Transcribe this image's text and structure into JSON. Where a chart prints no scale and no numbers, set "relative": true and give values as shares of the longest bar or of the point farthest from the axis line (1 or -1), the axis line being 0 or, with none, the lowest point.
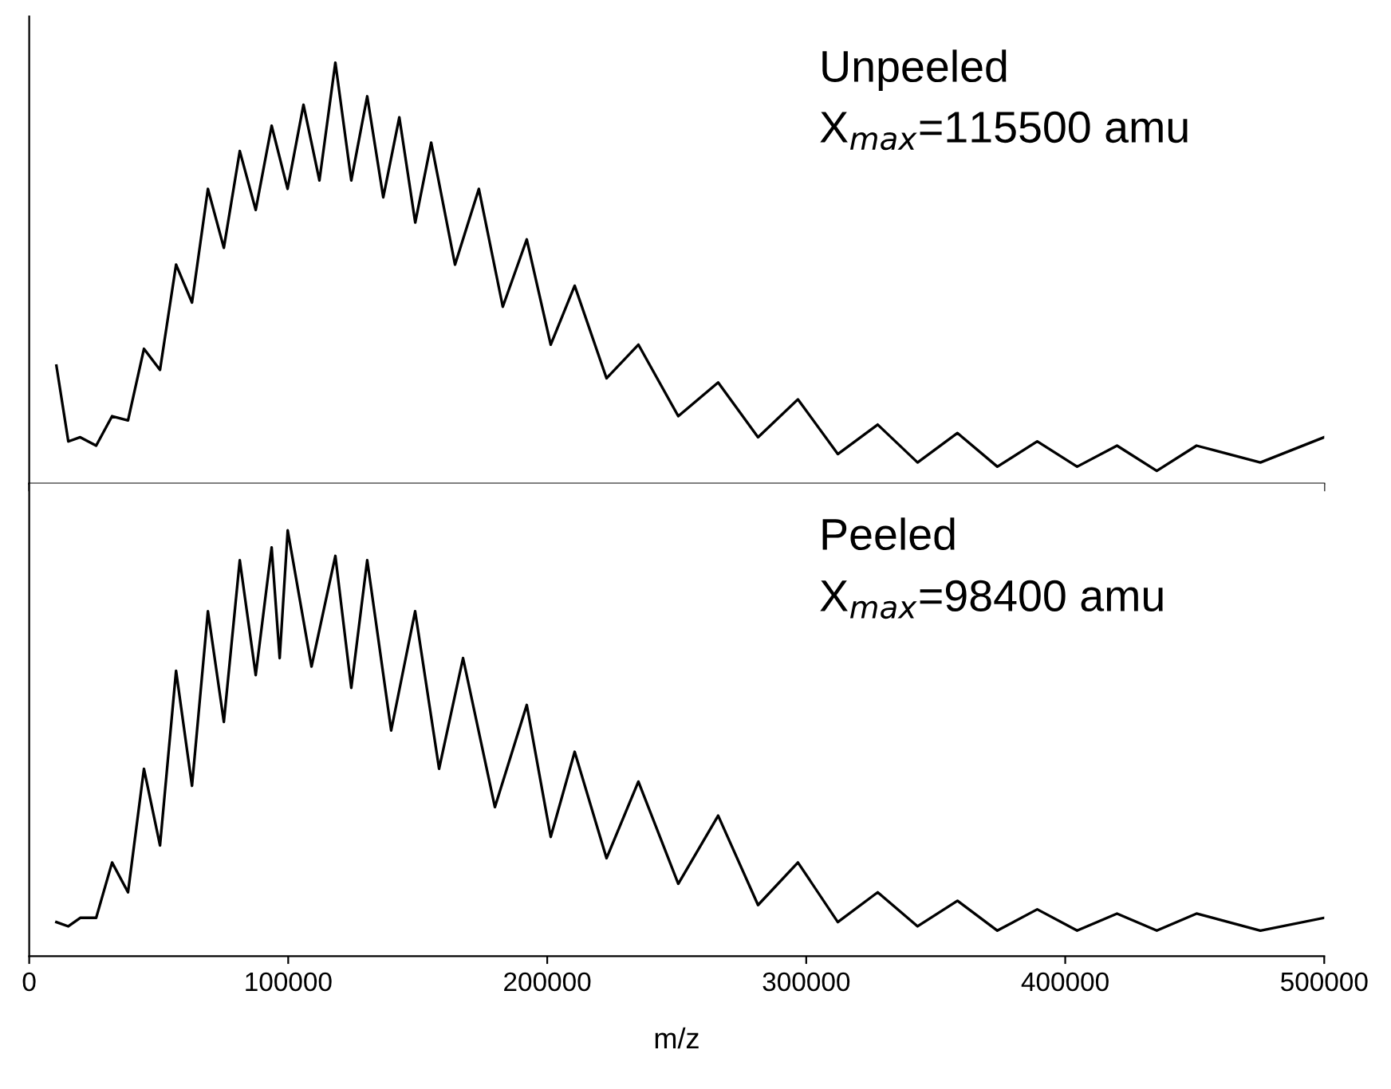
{
  "chart_data": [
    {
      "type": "line",
      "relative": true,
      "xlim": [
        0,
        500000
      ],
      "xticks": [
        0,
        100000,
        200000,
        300000,
        400000,
        500000
      ],
      "tick_labels": false,
      "grid": false,
      "legend": false,
      "annotations": [
        "Unpeeled",
        "X$_{max}$=115500 amu"
      ],
      "series": [
        {
          "color": "#000000",
          "x": [
            10500,
            15100,
            19700,
            25850,
            32000,
            38150,
            44300,
            50500,
            56700,
            62850,
            69000,
            75150,
            81300,
            87450,
            93600,
            99750,
            105900,
            112050,
            118200,
            124350,
            130500,
            136700,
            142900,
            149050,
            155200,
            164400,
            173600,
            182850,
            192100,
            201350,
            210600,
            222900,
            235200,
            250600,
            266000,
            281400,
            296800,
            312200,
            327600,
            343000,
            358400,
            373800,
            389200,
            404600,
            420000,
            435350,
            450700,
            475350,
            500000
          ],
          "values": [
            0.28,
            0.1,
            0.11,
            0.09,
            0.16,
            0.15,
            0.32,
            0.27,
            0.52,
            0.43,
            0.7,
            0.56,
            0.79,
            0.65,
            0.85,
            0.7,
            0.9,
            0.72,
            1.0,
            0.72,
            0.92,
            0.68,
            0.87,
            0.62,
            0.81,
            0.52,
            0.7,
            0.42,
            0.58,
            0.33,
            0.47,
            0.25,
            0.33,
            0.16,
            0.24,
            0.11,
            0.2,
            0.07,
            0.14,
            0.05,
            0.12,
            0.04,
            0.1,
            0.04,
            0.09,
            0.03,
            0.09,
            0.05,
            0.11
          ]
        }
      ]
    },
    {
      "type": "line",
      "relative": true,
      "xlim": [
        0,
        500000
      ],
      "xticks": [
        0,
        100000,
        200000,
        300000,
        400000,
        500000
      ],
      "tick_labels": "x",
      "xlabel": "m/z",
      "grid": false,
      "legend": false,
      "annotations": [
        "Peeled",
        "X$_{max}$=98400 amu"
      ],
      "series": [
        {
          "color": "#000000",
          "x": [
            10500,
            15100,
            19700,
            25850,
            32000,
            38150,
            44300,
            50500,
            56700,
            62850,
            69000,
            75150,
            81300,
            87450,
            93600,
            96700,
            99800,
            109000,
            118200,
            124350,
            130500,
            139750,
            149000,
            158250,
            167500,
            179800,
            192100,
            201350,
            210600,
            222900,
            235200,
            250600,
            266000,
            281400,
            296800,
            312200,
            327600,
            343000,
            358400,
            373800,
            389200,
            404600,
            420000,
            435350,
            450700,
            475350,
            500000
          ],
          "values": [
            0.08,
            0.07,
            0.09,
            0.09,
            0.22,
            0.15,
            0.44,
            0.26,
            0.67,
            0.4,
            0.81,
            0.55,
            0.93,
            0.66,
            0.96,
            0.7,
            1.0,
            0.68,
            0.94,
            0.63,
            0.93,
            0.53,
            0.81,
            0.44,
            0.7,
            0.35,
            0.59,
            0.28,
            0.48,
            0.23,
            0.41,
            0.17,
            0.33,
            0.12,
            0.22,
            0.08,
            0.15,
            0.07,
            0.13,
            0.06,
            0.11,
            0.06,
            0.1,
            0.06,
            0.1,
            0.06,
            0.09
          ]
        }
      ]
    }
  ]
}
